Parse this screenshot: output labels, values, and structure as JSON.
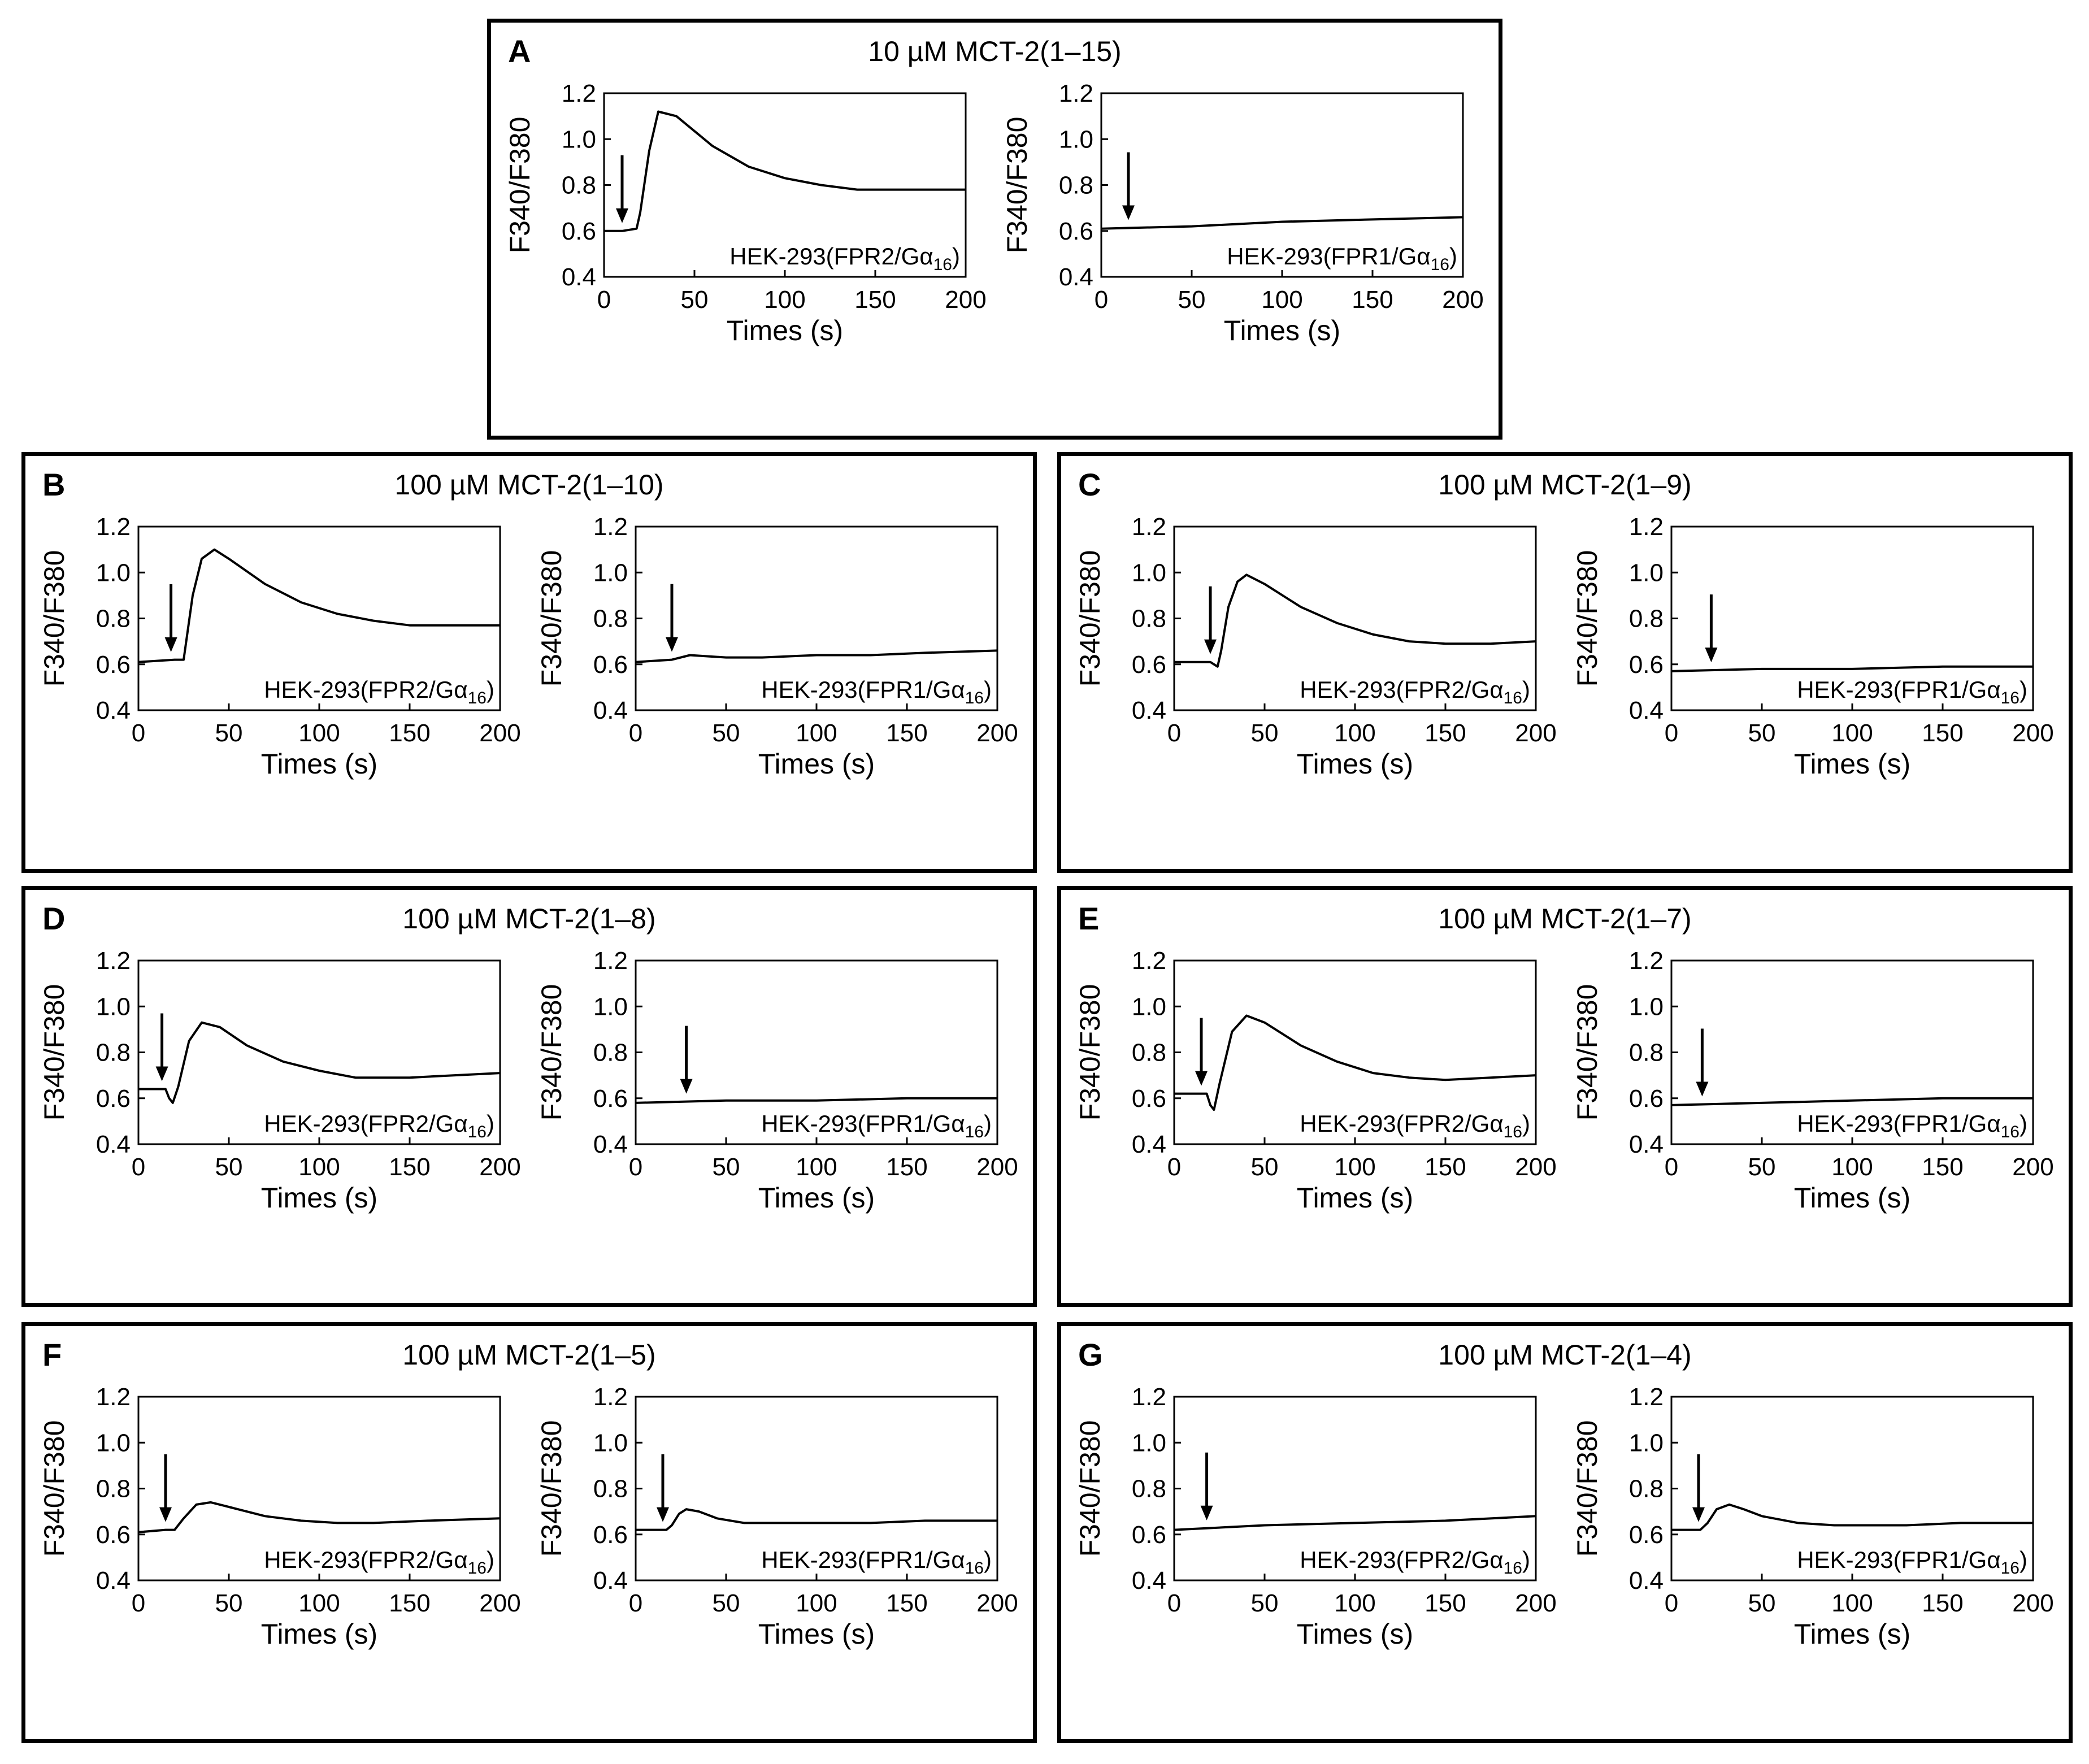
{
  "figure": {
    "x_ticks": [
      "0",
      "50",
      "100",
      "150",
      "200"
    ],
    "y_ticks": [
      "0.4",
      "0.6",
      "0.8",
      "1.0",
      "1.2"
    ],
    "x_label": "Times (s)",
    "y_label": "F340/F380",
    "line_color": "#000000"
  },
  "panels": [
    {
      "letter": "A",
      "title": "10 µM MCT-2(1–15)",
      "plots": [
        {
          "cell_base": "HEK-293(FPR2/Gα",
          "cell_sub": "16",
          "cell_close": ")"
        },
        {
          "cell_base": "HEK-293(FPR1/Gα",
          "cell_sub": "16",
          "cell_close": ")"
        }
      ]
    },
    {
      "letter": "B",
      "title": "100 µM MCT-2(1–10)",
      "plots": [
        {
          "cell_base": "HEK-293(FPR2/Gα",
          "cell_sub": "16",
          "cell_close": ")"
        },
        {
          "cell_base": "HEK-293(FPR1/Gα",
          "cell_sub": "16",
          "cell_close": ")"
        }
      ]
    },
    {
      "letter": "C",
      "title": "100 µM MCT-2(1–9)",
      "plots": [
        {
          "cell_base": "HEK-293(FPR2/Gα",
          "cell_sub": "16",
          "cell_close": ")"
        },
        {
          "cell_base": "HEK-293(FPR1/Gα",
          "cell_sub": "16",
          "cell_close": ")"
        }
      ]
    },
    {
      "letter": "D",
      "title": "100 µM MCT-2(1–8)",
      "plots": [
        {
          "cell_base": "HEK-293(FPR2/Gα",
          "cell_sub": "16",
          "cell_close": ")"
        },
        {
          "cell_base": "HEK-293(FPR1/Gα",
          "cell_sub": "16",
          "cell_close": ")"
        }
      ]
    },
    {
      "letter": "E",
      "title": "100 µM MCT-2(1–7)",
      "plots": [
        {
          "cell_base": "HEK-293(FPR2/Gα",
          "cell_sub": "16",
          "cell_close": ")"
        },
        {
          "cell_base": "HEK-293(FPR1/Gα",
          "cell_sub": "16",
          "cell_close": ")"
        }
      ]
    },
    {
      "letter": "F",
      "title": "100 µM MCT-2(1–5)",
      "plots": [
        {
          "cell_base": "HEK-293(FPR2/Gα",
          "cell_sub": "16",
          "cell_close": ")"
        },
        {
          "cell_base": "HEK-293(FPR1/Gα",
          "cell_sub": "16",
          "cell_close": ")"
        }
      ]
    },
    {
      "letter": "G",
      "title": "100 µM MCT-2(1–4)",
      "plots": [
        {
          "cell_base": "HEK-293(FPR2/Gα",
          "cell_sub": "16",
          "cell_close": ")"
        },
        {
          "cell_base": "HEK-293(FPR1/Gα",
          "cell_sub": "16",
          "cell_close": ")"
        }
      ]
    }
  ],
  "chart_data": [
    {
      "type": "line",
      "panel": "A",
      "title": "10 µM MCT-2(1–15)",
      "subtitle": "HEK-293(FPR2/Gα16)",
      "xlabel": "Times (s)",
      "ylabel": "F340/F380",
      "xlim": [
        0,
        200
      ],
      "ylim": [
        0.4,
        1.2
      ],
      "arrow_at": 10,
      "x": [
        0,
        10,
        18,
        20,
        25,
        30,
        40,
        60,
        80,
        100,
        120,
        140,
        160,
        180,
        200
      ],
      "y": [
        0.6,
        0.6,
        0.61,
        0.68,
        0.95,
        1.12,
        1.1,
        0.97,
        0.88,
        0.83,
        0.8,
        0.78,
        0.78,
        0.78,
        0.78
      ]
    },
    {
      "type": "line",
      "panel": "A",
      "title": "10 µM MCT-2(1–15)",
      "subtitle": "HEK-293(FPR1/Gα16)",
      "xlabel": "Times (s)",
      "ylabel": "F340/F380",
      "xlim": [
        0,
        200
      ],
      "ylim": [
        0.4,
        1.2
      ],
      "arrow_at": 15,
      "x": [
        0,
        50,
        100,
        150,
        200
      ],
      "y": [
        0.61,
        0.62,
        0.64,
        0.65,
        0.66
      ]
    },
    {
      "type": "line",
      "panel": "B",
      "title": "100 µM MCT-2(1–10)",
      "subtitle": "HEK-293(FPR2/Gα16)",
      "xlabel": "Times (s)",
      "ylabel": "F340/F380",
      "xlim": [
        0,
        200
      ],
      "ylim": [
        0.4,
        1.2
      ],
      "arrow_at": 18,
      "x": [
        0,
        20,
        25,
        30,
        35,
        42,
        50,
        70,
        90,
        110,
        130,
        150,
        175,
        200
      ],
      "y": [
        0.61,
        0.62,
        0.62,
        0.9,
        1.06,
        1.1,
        1.06,
        0.95,
        0.87,
        0.82,
        0.79,
        0.77,
        0.77,
        0.77
      ]
    },
    {
      "type": "line",
      "panel": "B",
      "title": "100 µM MCT-2(1–10)",
      "subtitle": "HEK-293(FPR1/Gα16)",
      "xlabel": "Times (s)",
      "ylabel": "F340/F380",
      "xlim": [
        0,
        200
      ],
      "ylim": [
        0.4,
        1.2
      ],
      "arrow_at": 20,
      "x": [
        0,
        20,
        30,
        50,
        70,
        100,
        130,
        160,
        200
      ],
      "y": [
        0.61,
        0.62,
        0.64,
        0.63,
        0.63,
        0.64,
        0.64,
        0.65,
        0.66
      ]
    },
    {
      "type": "line",
      "panel": "C",
      "title": "100 µM MCT-2(1–9)",
      "subtitle": "HEK-293(FPR2/Gα16)",
      "xlabel": "Times (s)",
      "ylabel": "F340/F380",
      "xlim": [
        0,
        200
      ],
      "ylim": [
        0.4,
        1.2
      ],
      "arrow_at": 20,
      "x": [
        0,
        20,
        24,
        26,
        30,
        35,
        40,
        50,
        70,
        90,
        110,
        130,
        150,
        175,
        200
      ],
      "y": [
        0.61,
        0.61,
        0.59,
        0.66,
        0.85,
        0.96,
        0.99,
        0.95,
        0.85,
        0.78,
        0.73,
        0.7,
        0.69,
        0.69,
        0.7
      ]
    },
    {
      "type": "line",
      "panel": "C",
      "title": "100 µM MCT-2(1–9)",
      "subtitle": "HEK-293(FPR1/Gα16)",
      "xlabel": "Times (s)",
      "ylabel": "F340/F380",
      "xlim": [
        0,
        200
      ],
      "ylim": [
        0.4,
        1.2
      ],
      "arrow_at": 22,
      "x": [
        0,
        50,
        100,
        150,
        200
      ],
      "y": [
        0.57,
        0.58,
        0.58,
        0.59,
        0.59
      ]
    },
    {
      "type": "line",
      "panel": "D",
      "title": "100 µM MCT-2(1–8)",
      "subtitle": "HEK-293(FPR2/Gα16)",
      "xlabel": "Times (s)",
      "ylabel": "F340/F380",
      "xlim": [
        0,
        200
      ],
      "ylim": [
        0.4,
        1.2
      ],
      "arrow_at": 13,
      "x": [
        0,
        15,
        17,
        19,
        22,
        28,
        35,
        45,
        60,
        80,
        100,
        120,
        150,
        175,
        200
      ],
      "y": [
        0.64,
        0.64,
        0.6,
        0.58,
        0.65,
        0.85,
        0.93,
        0.91,
        0.83,
        0.76,
        0.72,
        0.69,
        0.69,
        0.7,
        0.71
      ]
    },
    {
      "type": "line",
      "panel": "D",
      "title": "100 µM MCT-2(1–8)",
      "subtitle": "HEK-293(FPR1/Gα16)",
      "xlabel": "Times (s)",
      "ylabel": "F340/F380",
      "xlim": [
        0,
        200
      ],
      "ylim": [
        0.4,
        1.2
      ],
      "arrow_at": 28,
      "x": [
        0,
        50,
        100,
        150,
        200
      ],
      "y": [
        0.58,
        0.59,
        0.59,
        0.6,
        0.6
      ]
    },
    {
      "type": "line",
      "panel": "E",
      "title": "100 µM MCT-2(1–7)",
      "subtitle": "HEK-293(FPR2/Gα16)",
      "xlabel": "Times (s)",
      "ylabel": "F340/F380",
      "xlim": [
        0,
        200
      ],
      "ylim": [
        0.4,
        1.2
      ],
      "arrow_at": 15,
      "x": [
        0,
        18,
        20,
        22,
        25,
        32,
        40,
        50,
        70,
        90,
        110,
        130,
        150,
        175,
        200
      ],
      "y": [
        0.62,
        0.62,
        0.57,
        0.55,
        0.66,
        0.89,
        0.96,
        0.93,
        0.83,
        0.76,
        0.71,
        0.69,
        0.68,
        0.69,
        0.7
      ]
    },
    {
      "type": "line",
      "panel": "E",
      "title": "100 µM MCT-2(1–7)",
      "subtitle": "HEK-293(FPR1/Gα16)",
      "xlabel": "Times (s)",
      "ylabel": "F340/F380",
      "xlim": [
        0,
        200
      ],
      "ylim": [
        0.4,
        1.2
      ],
      "arrow_at": 17,
      "x": [
        0,
        50,
        100,
        150,
        200
      ],
      "y": [
        0.57,
        0.58,
        0.59,
        0.6,
        0.6
      ]
    },
    {
      "type": "line",
      "panel": "F",
      "title": "100 µM MCT-2(1–5)",
      "subtitle": "HEK-293(FPR2/Gα16)",
      "xlabel": "Times (s)",
      "ylabel": "F340/F380",
      "xlim": [
        0,
        200
      ],
      "ylim": [
        0.4,
        1.2
      ],
      "arrow_at": 15,
      "x": [
        0,
        15,
        20,
        25,
        32,
        40,
        50,
        70,
        90,
        110,
        130,
        160,
        200
      ],
      "y": [
        0.61,
        0.62,
        0.62,
        0.67,
        0.73,
        0.74,
        0.72,
        0.68,
        0.66,
        0.65,
        0.65,
        0.66,
        0.67
      ]
    },
    {
      "type": "line",
      "panel": "F",
      "title": "100 µM MCT-2(1–5)",
      "subtitle": "HEK-293(FPR1/Gα16)",
      "xlabel": "Times (s)",
      "ylabel": "F340/F380",
      "xlim": [
        0,
        200
      ],
      "ylim": [
        0.4,
        1.2
      ],
      "arrow_at": 15,
      "x": [
        0,
        17,
        20,
        24,
        28,
        35,
        45,
        60,
        80,
        100,
        130,
        160,
        200
      ],
      "y": [
        0.62,
        0.62,
        0.64,
        0.69,
        0.71,
        0.7,
        0.67,
        0.65,
        0.65,
        0.65,
        0.65,
        0.66,
        0.66
      ]
    },
    {
      "type": "line",
      "panel": "G",
      "title": "100 µM MCT-2(1–4)",
      "subtitle": "HEK-293(FPR2/Gα16)",
      "xlabel": "Times (s)",
      "ylabel": "F340/F380",
      "xlim": [
        0,
        200
      ],
      "ylim": [
        0.4,
        1.2
      ],
      "arrow_at": 18,
      "x": [
        0,
        50,
        100,
        150,
        200
      ],
      "y": [
        0.62,
        0.64,
        0.65,
        0.66,
        0.68
      ]
    },
    {
      "type": "line",
      "panel": "G",
      "title": "100 µM MCT-2(1–4)",
      "subtitle": "HEK-293(FPR1/Gα16)",
      "xlabel": "Times (s)",
      "ylabel": "F340/F380",
      "xlim": [
        0,
        200
      ],
      "ylim": [
        0.4,
        1.2
      ],
      "arrow_at": 15,
      "x": [
        0,
        16,
        20,
        25,
        32,
        40,
        50,
        70,
        90,
        110,
        130,
        160,
        200
      ],
      "y": [
        0.62,
        0.62,
        0.65,
        0.71,
        0.73,
        0.71,
        0.68,
        0.65,
        0.64,
        0.64,
        0.64,
        0.65,
        0.65
      ]
    }
  ]
}
